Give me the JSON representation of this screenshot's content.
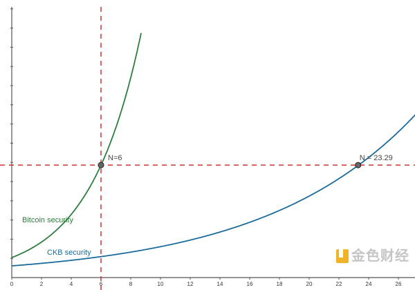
{
  "chart_data": {
    "type": "line",
    "title": "",
    "xlabel": "",
    "ylabel": "",
    "xlim": [
      0,
      27.5
    ],
    "ylim": [
      0,
      14.2
    ],
    "x_ticks": [
      0,
      2,
      4,
      6,
      8,
      10,
      12,
      14,
      16,
      18,
      20,
      22,
      24,
      26
    ],
    "y_tick_labels_shown": false,
    "grid": false,
    "series": [
      {
        "name": "Bitcoin security",
        "color": "#2e7d3e",
        "a": 1.04,
        "b": 0.288,
        "x_range": [
          0,
          8.7
        ]
      },
      {
        "name": "CKB security",
        "color": "#1a6a9c",
        "a": 0.61,
        "b": 0.097,
        "x_range": [
          0,
          27.5
        ]
      }
    ],
    "threshold_y": 5.86,
    "threshold_color": "#cc3333",
    "vertical_line_x": 6,
    "points": [
      {
        "x": 6,
        "label": "N=6"
      },
      {
        "x": 23.29,
        "label": "N = 23.29"
      }
    ]
  },
  "watermark": {
    "text": "金色财经"
  }
}
